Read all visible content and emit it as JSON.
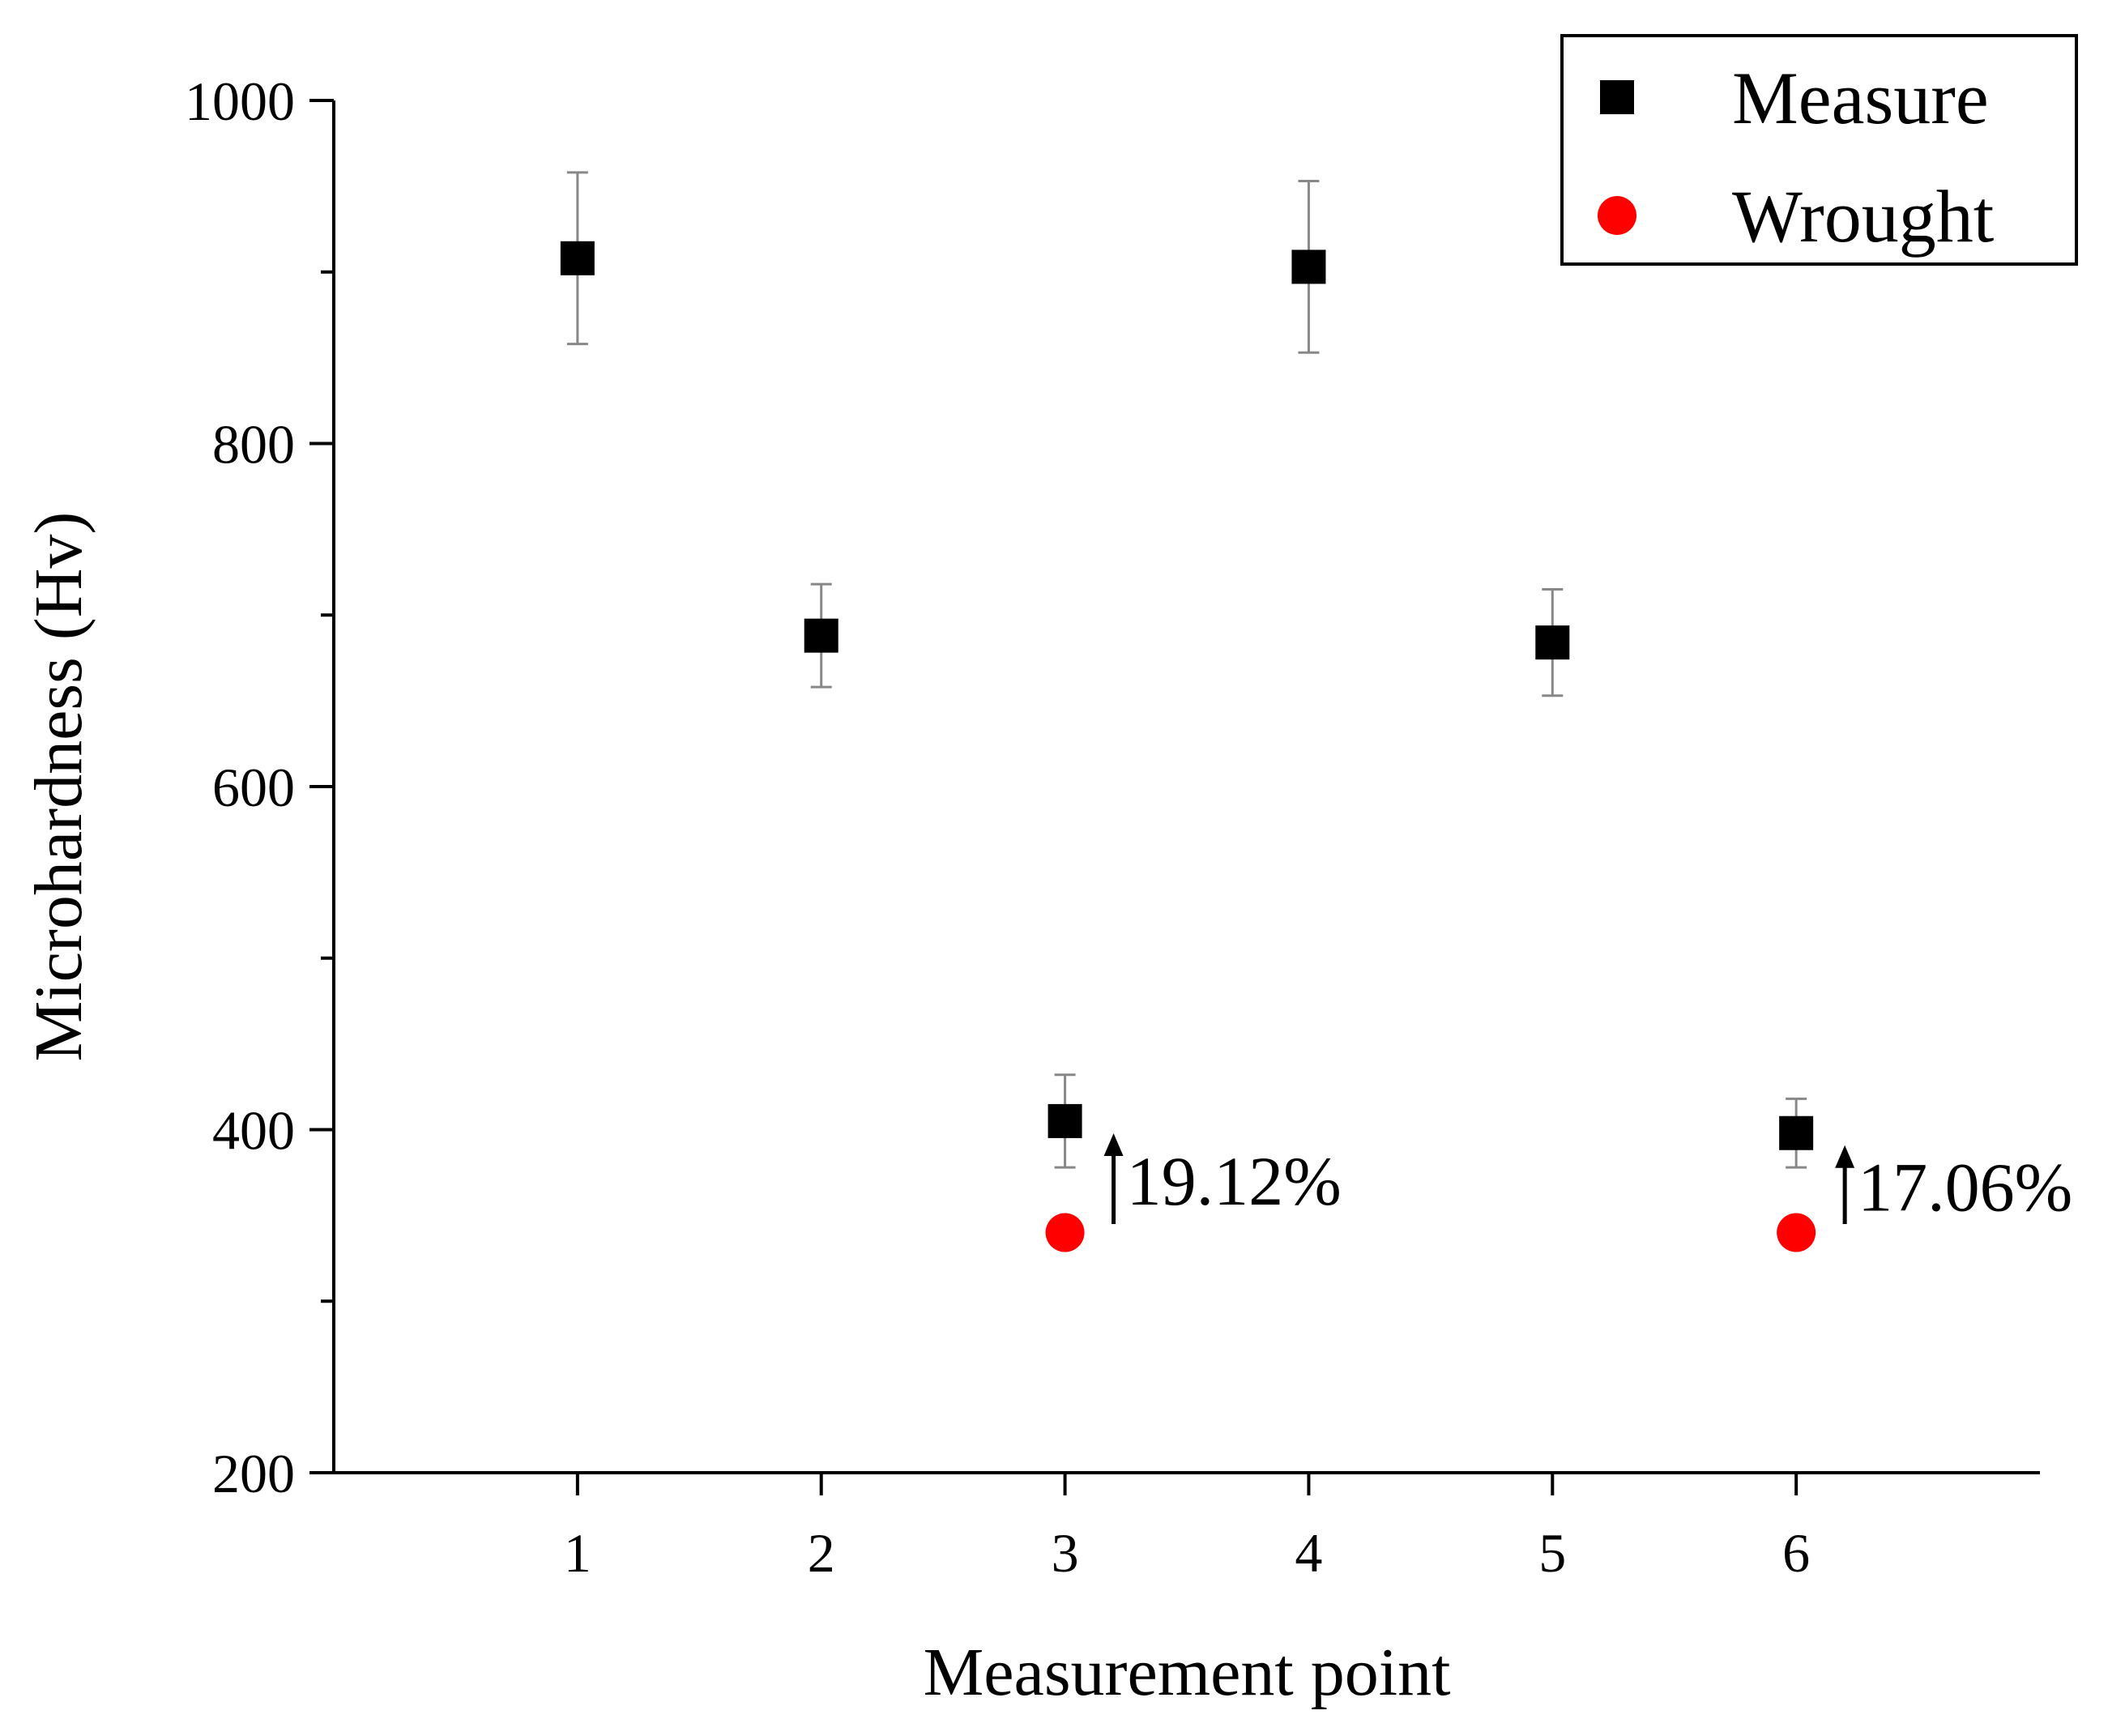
{
  "chart_data": {
    "type": "scatter",
    "title": "",
    "xlabel": "Measurement point",
    "ylabel": "Microhardness (Hv)",
    "xlim": [
      0,
      7
    ],
    "ylim": [
      200,
      1000
    ],
    "x_ticks": [
      1,
      2,
      3,
      4,
      5,
      6
    ],
    "y_ticks": [
      200,
      400,
      600,
      800,
      1000
    ],
    "y_minor_ticks": [
      300,
      500,
      700,
      900
    ],
    "grid": false,
    "legend_position": "top-right",
    "series": [
      {
        "name": "Measure",
        "marker": "square",
        "color": "#000000",
        "points": [
          {
            "x": 1,
            "y": 908,
            "err": 50
          },
          {
            "x": 2,
            "y": 688,
            "err": 30
          },
          {
            "x": 3,
            "y": 405,
            "err": 27
          },
          {
            "x": 4,
            "y": 903,
            "err": 50
          },
          {
            "x": 5,
            "y": 684,
            "err": 31
          },
          {
            "x": 6,
            "y": 398,
            "err": 20
          }
        ]
      },
      {
        "name": "Wrought",
        "marker": "circle",
        "color": "#ff0000",
        "points": [
          {
            "x": 3,
            "y": 340
          },
          {
            "x": 6,
            "y": 340
          }
        ]
      }
    ],
    "annotations": [
      {
        "x": 3,
        "y_from": 345,
        "y_to": 396,
        "text": "19.12%"
      },
      {
        "x": 6,
        "y_from": 345,
        "y_to": 389,
        "text": "17.06%"
      }
    ]
  }
}
